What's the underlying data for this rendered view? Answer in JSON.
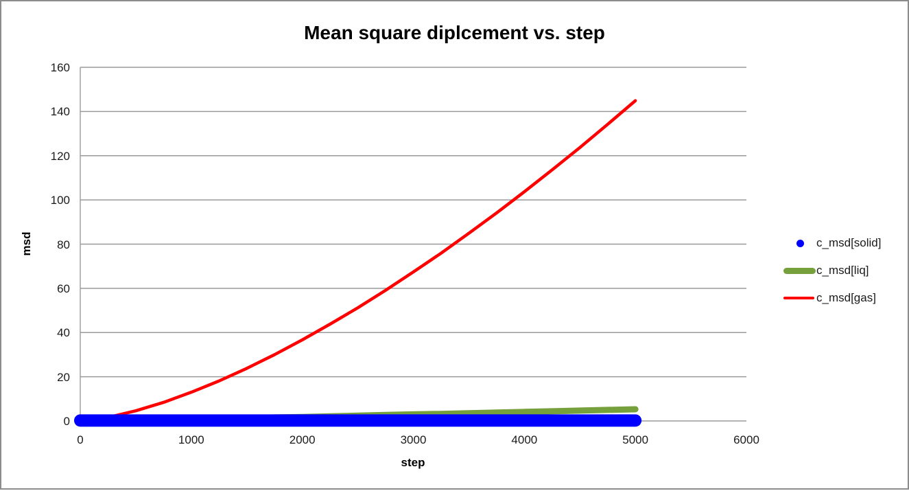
{
  "window": {
    "background": "#FFFFFF",
    "border_color": "#8C8C8C"
  },
  "chart_data": {
    "type": "line",
    "title": "Mean square diplcement vs. step",
    "xlabel": "step",
    "ylabel": "msd",
    "xlim": [
      0,
      6000
    ],
    "ylim": [
      0,
      160
    ],
    "xticks": [
      0,
      1000,
      2000,
      3000,
      4000,
      5000,
      6000
    ],
    "yticks": [
      0,
      20,
      40,
      60,
      80,
      100,
      120,
      140,
      160
    ],
    "grid": "horizontal-only",
    "grid_color": "#9A9A9A",
    "axis_color": "#9A9A9A",
    "legend_position": "center-right",
    "x": [
      0,
      250,
      500,
      750,
      1000,
      1250,
      1500,
      1750,
      2000,
      2250,
      2500,
      2750,
      3000,
      3250,
      3500,
      3750,
      4000,
      4250,
      4500,
      4750,
      5000
    ],
    "series": [
      {
        "name": "c_msd[solid]",
        "color": "#0000FF",
        "legend_marker": "dot",
        "line_width": 18,
        "values": [
          0.2,
          0.2,
          0.2,
          0.2,
          0.2,
          0.2,
          0.2,
          0.2,
          0.2,
          0.2,
          0.2,
          0.2,
          0.2,
          0.2,
          0.2,
          0.2,
          0.2,
          0.2,
          0.2,
          0.2,
          0.2
        ]
      },
      {
        "name": "c_msd[liq]",
        "color": "#76A03C",
        "legend_marker": "thick-line",
        "line_width": 9,
        "values": [
          0,
          0.2,
          0.4,
          0.6,
          0.8,
          1.1,
          1.3,
          1.6,
          1.8,
          2.1,
          2.4,
          2.7,
          3.0,
          3.2,
          3.5,
          3.8,
          4.1,
          4.4,
          4.7,
          5.0,
          5.3
        ]
      },
      {
        "name": "c_msd[gas]",
        "color": "#FF0000",
        "legend_marker": "thin-line",
        "line_width": 4.5,
        "values": [
          0,
          1.6,
          4.6,
          8.4,
          13.0,
          18.1,
          23.8,
          30.0,
          36.7,
          43.8,
          51.2,
          59.1,
          67.4,
          75.9,
          84.9,
          94.1,
          103.7,
          113.6,
          123.7,
          134.2,
          144.9
        ]
      }
    ],
    "draw_order": [
      "c_msd[liq]",
      "c_msd[gas]",
      "c_msd[solid]"
    ]
  }
}
